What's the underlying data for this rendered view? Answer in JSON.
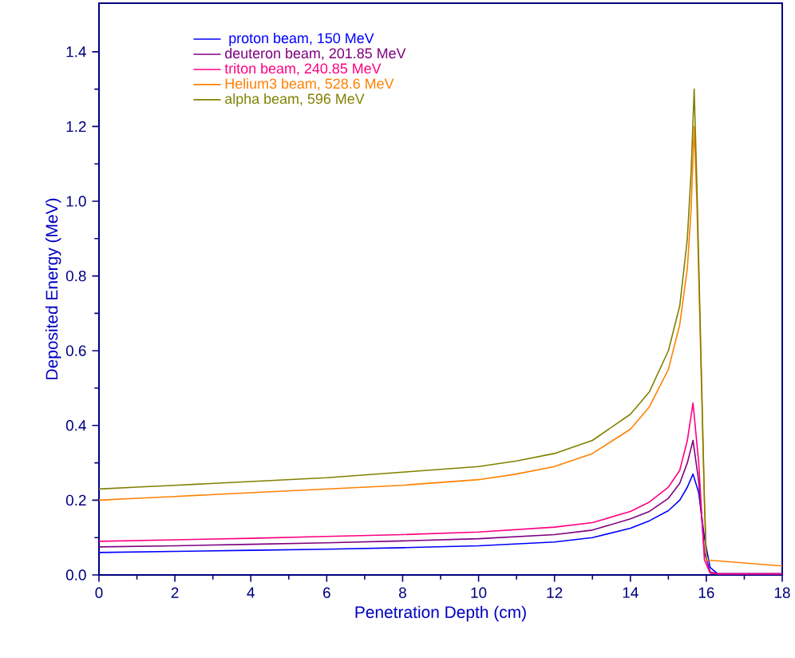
{
  "chart_data": {
    "type": "line",
    "xlabel": "Penetration Depth (cm)",
    "ylabel": "Deposited Energy (MeV)",
    "xlim": [
      0,
      18
    ],
    "ylim": [
      0,
      1.53
    ],
    "xticks": [
      0,
      2,
      4,
      6,
      8,
      10,
      12,
      14,
      16,
      18
    ],
    "yticks": [
      {
        "value": 0,
        "label": "0.0"
      },
      0.2,
      0.4,
      0.6,
      0.8,
      {
        "value": 1,
        "label": "1.0"
      },
      1.2,
      1.4
    ],
    "legend": "top left",
    "grid": false,
    "marker": "none",
    "line_style": "solid",
    "series": [
      {
        "name": " proton beam, 150 MeV",
        "color": "#0000ff",
        "x": [
          0,
          2,
          4,
          6,
          8,
          10,
          12,
          13,
          14,
          14.5,
          15,
          15.3,
          15.5,
          15.65,
          15.8,
          15.95,
          16.1,
          16.3,
          18
        ],
        "values": [
          0.06,
          0.063,
          0.066,
          0.069,
          0.073,
          0.078,
          0.088,
          0.1,
          0.125,
          0.145,
          0.172,
          0.2,
          0.235,
          0.27,
          0.22,
          0.1,
          0.02,
          0.003,
          0.003
        ]
      },
      {
        "name": "deuteron beam, 201.85 MeV",
        "color": "#800080",
        "x": [
          0,
          2,
          4,
          6,
          8,
          10,
          12,
          13,
          14,
          14.5,
          15,
          15.3,
          15.5,
          15.65,
          15.8,
          15.95,
          16.1,
          16.3,
          18
        ],
        "values": [
          0.075,
          0.078,
          0.082,
          0.086,
          0.091,
          0.097,
          0.108,
          0.12,
          0.15,
          0.17,
          0.205,
          0.245,
          0.3,
          0.36,
          0.25,
          0.06,
          0.008,
          0.003,
          0.003
        ]
      },
      {
        "name": "triton beam, 240.85 MeV",
        "color": "#ff0080",
        "x": [
          0,
          2,
          4,
          6,
          8,
          10,
          12,
          13,
          14,
          14.5,
          15,
          15.3,
          15.5,
          15.65,
          15.8,
          15.95,
          16.1,
          16.3,
          18
        ],
        "values": [
          0.09,
          0.094,
          0.098,
          0.103,
          0.108,
          0.115,
          0.128,
          0.14,
          0.17,
          0.195,
          0.235,
          0.28,
          0.36,
          0.46,
          0.3,
          0.04,
          0.005,
          0.003,
          0.003
        ]
      },
      {
        "name": "Helium3 beam, 528.6 MeV",
        "color": "#ff8000",
        "x": [
          0,
          1,
          2,
          4,
          6,
          8,
          10,
          11,
          12,
          13,
          14,
          14.5,
          15,
          15.3,
          15.5,
          15.6,
          15.68,
          15.75,
          15.95,
          16.0,
          17,
          18
        ],
        "values": [
          0.2,
          0.205,
          0.21,
          0.22,
          0.23,
          0.24,
          0.255,
          0.27,
          0.29,
          0.325,
          0.39,
          0.45,
          0.55,
          0.67,
          0.82,
          0.98,
          1.2,
          1.0,
          0.2,
          0.04,
          0.032,
          0.024
        ]
      },
      {
        "name": "alpha beam, 596 MeV",
        "color": "#808000",
        "x": [
          0,
          1,
          2,
          4,
          6,
          8,
          10,
          11,
          12,
          13,
          14,
          14.5,
          15,
          15.3,
          15.5,
          15.6,
          15.68,
          15.75,
          15.95,
          16.0
        ],
        "values": [
          0.23,
          0.235,
          0.24,
          0.25,
          0.26,
          0.275,
          0.29,
          0.305,
          0.325,
          0.36,
          0.43,
          0.49,
          0.6,
          0.72,
          0.9,
          1.08,
          1.3,
          1.05,
          0.2,
          0.04
        ]
      }
    ]
  }
}
